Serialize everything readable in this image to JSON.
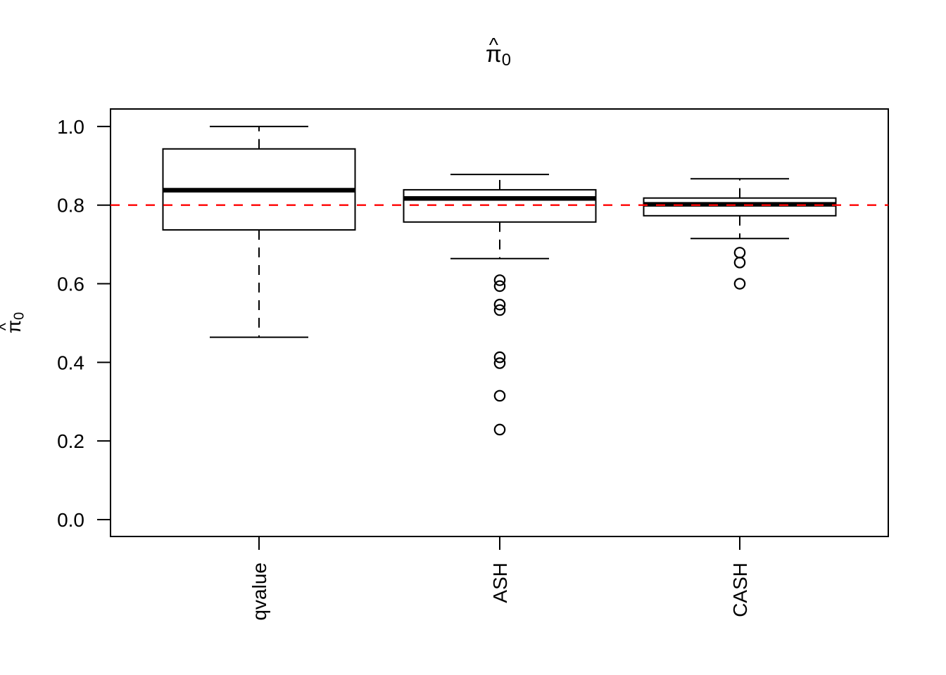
{
  "chart_data": {
    "type": "boxplot",
    "title": {
      "symbol": "π",
      "accent": "^",
      "subscript": "0"
    },
    "ylabel": {
      "symbol": "π",
      "accent": "^",
      "subscript": "0"
    },
    "xlabel": "",
    "categories": [
      "qvalue",
      "ASH",
      "CASH"
    ],
    "x_tick_label_rotation": 90,
    "y_tick_labels": [
      "0.0",
      "0.2",
      "0.4",
      "0.6",
      "0.8",
      "1.0"
    ],
    "ylim": [
      0.0,
      1.0
    ],
    "grid": false,
    "legend": "none",
    "reference_line": {
      "value": 0.8,
      "color": "#ff0000",
      "style": "dashed"
    },
    "boxes": [
      {
        "label": "qvalue",
        "whisker_low": 0.464,
        "q1": 0.737,
        "median": 0.838,
        "q3": 0.943,
        "whisker_high": 1.0,
        "outliers": []
      },
      {
        "label": "ASH",
        "whisker_low": 0.664,
        "q1": 0.757,
        "median": 0.817,
        "q3": 0.839,
        "whisker_high": 0.878,
        "outliers": [
          0.609,
          0.594,
          0.547,
          0.533,
          0.413,
          0.398,
          0.315,
          0.229
        ]
      },
      {
        "label": "CASH",
        "whisker_low": 0.715,
        "q1": 0.773,
        "median": 0.802,
        "q3": 0.818,
        "whisker_high": 0.867,
        "outliers": [
          0.679,
          0.654,
          0.6
        ]
      }
    ],
    "colors": {
      "stroke": "#000000",
      "reference": "#ff0000",
      "background": "#ffffff"
    }
  }
}
